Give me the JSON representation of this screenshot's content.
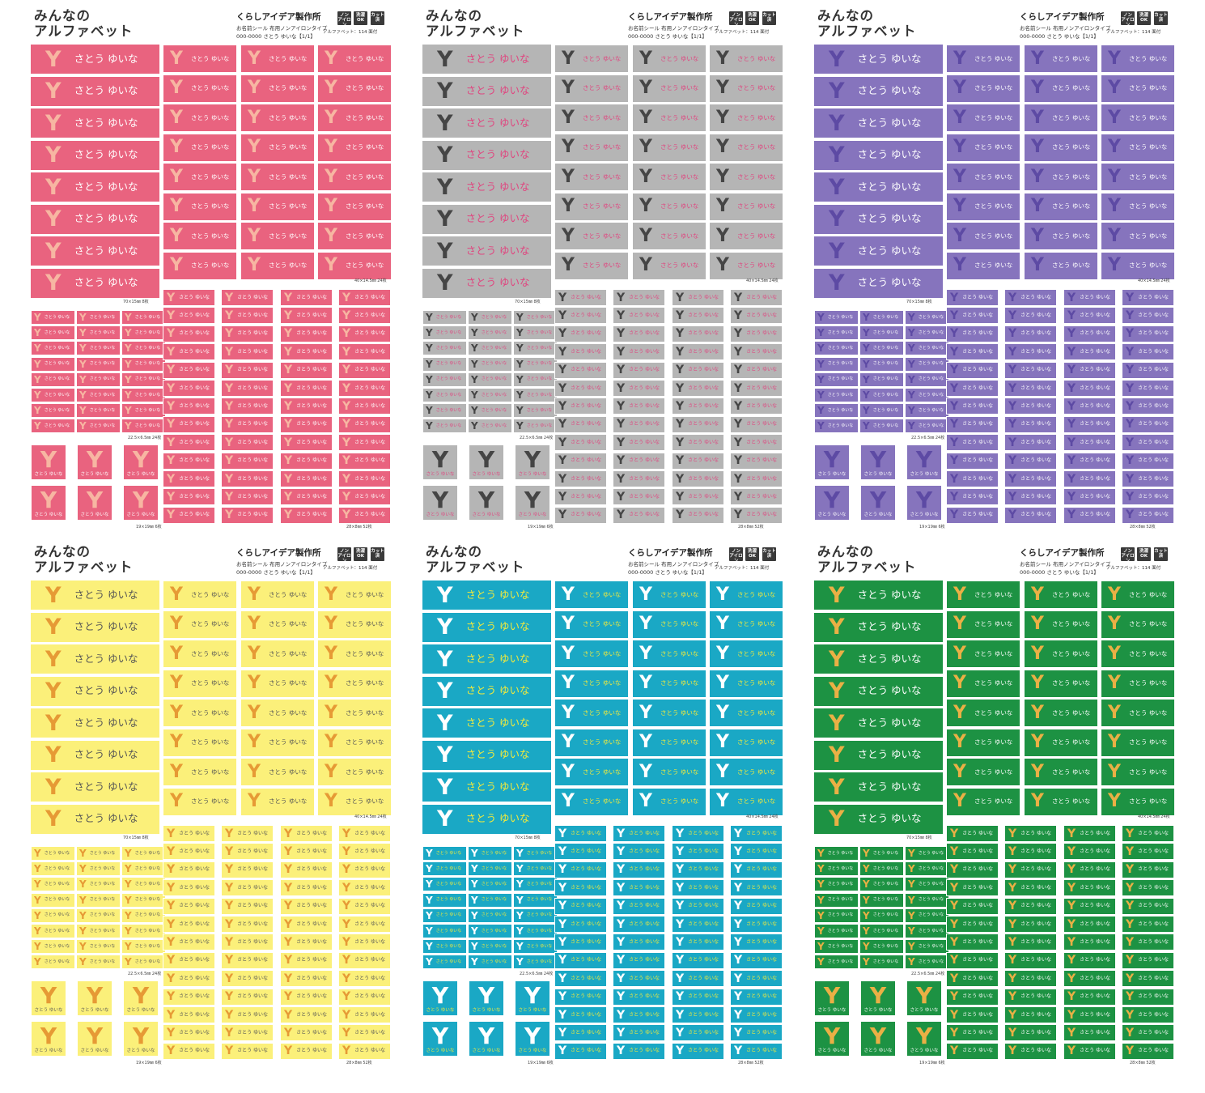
{
  "header": {
    "title_line1": "みんなの",
    "title_line2": "アルファベット",
    "maker": "くらしアイデア製作所",
    "sub1": "お名前シール  布用ノンアイロンタイプ",
    "sub2": "000-0000  さとう ゆいな【1/1】",
    "icon_noniron": "ノン\nアイロン",
    "icon_wash": "洗濯\nOK",
    "icon_cut": "カット\n済",
    "count": "アルファベット：114 面付"
  },
  "label": {
    "initial": "Y",
    "name": "さとう ゆいな"
  },
  "captions": {
    "large": "70×15㎜  8枚",
    "medium": "40×14.5㎜  24枚",
    "small": "22.5×6.5㎜  24枚",
    "square": "19×19㎜  6枚",
    "tiny": "28×8㎜  52枚"
  },
  "sheets": [
    {
      "name": "pink",
      "bg": "#e9637f",
      "letter": "#f7b6a2",
      "text": "#ffffff",
      "border": "#ffffff"
    },
    {
      "name": "gray",
      "bg": "#b5b5b5",
      "letter": "#454545",
      "text": "#e0457f",
      "border": "#ffffff"
    },
    {
      "name": "purple",
      "bg": "#8674bd",
      "letter": "#5d4aa4",
      "text": "#ffffff",
      "border": "#ffffff"
    },
    {
      "name": "yellow",
      "bg": "#fbf07a",
      "letter": "#e69a35",
      "text": "#555555",
      "border": "#ffffff"
    },
    {
      "name": "blue",
      "bg": "#1aa8c5",
      "letter": "#ffffff",
      "text": "#f2ea3c",
      "border": "#ffffff"
    },
    {
      "name": "green",
      "bg": "#1d9243",
      "letter": "#eab045",
      "text": "#ffffff",
      "border": "#ffffff"
    }
  ]
}
